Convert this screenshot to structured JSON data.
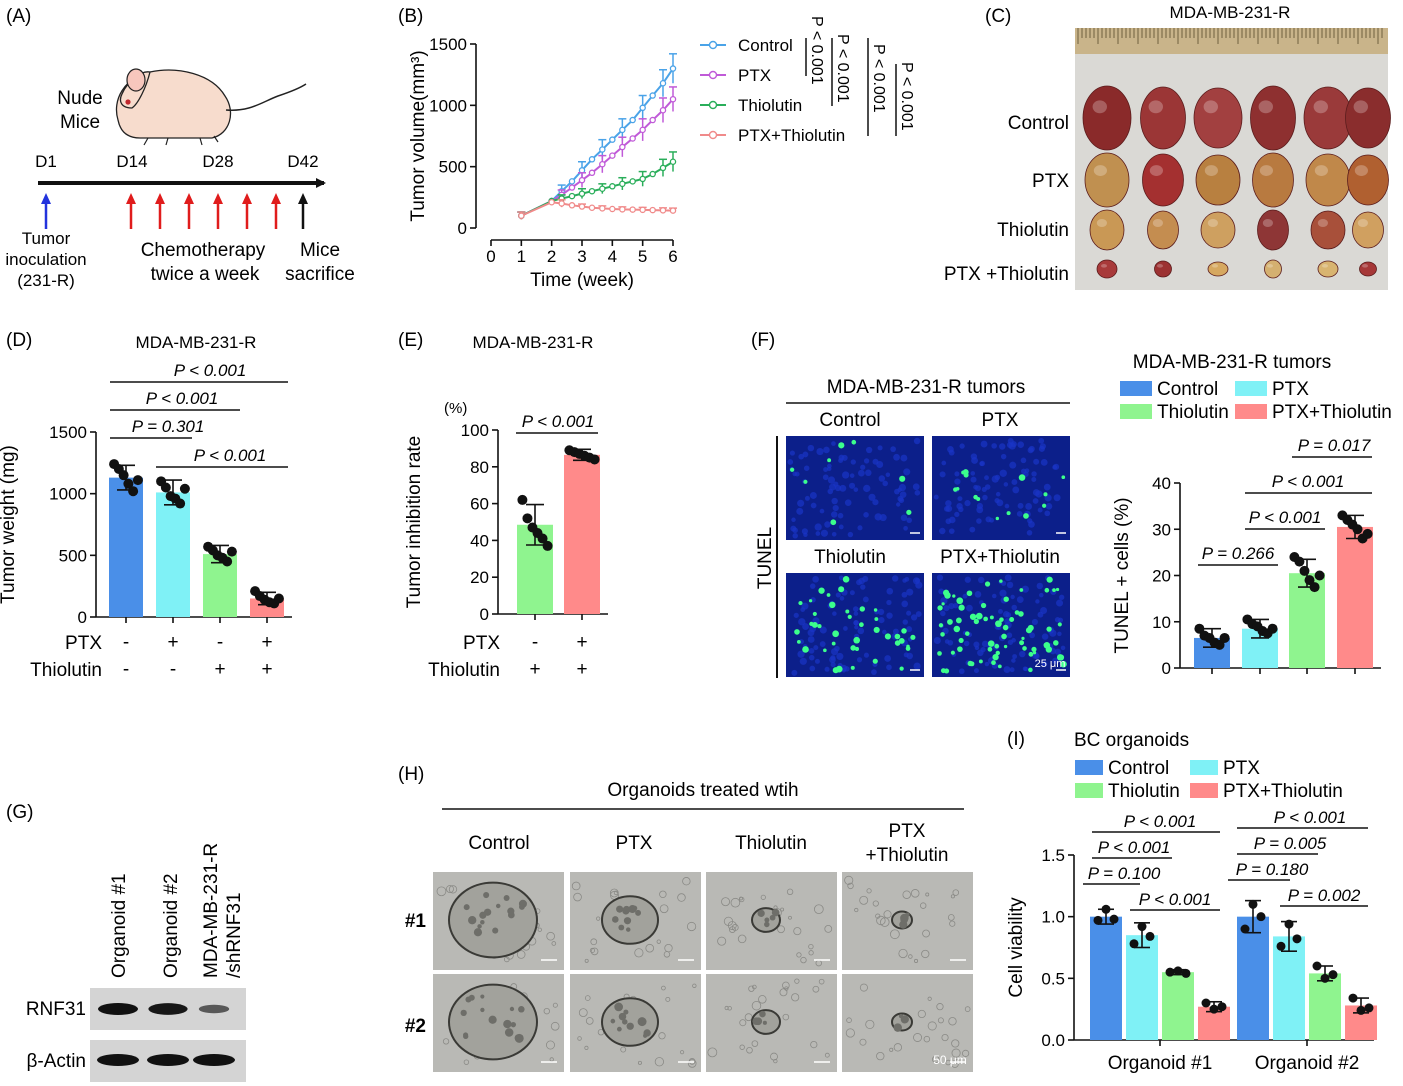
{
  "panels": {
    "A": {
      "letter": "(A)",
      "mouse_label_1": "Nude",
      "mouse_label_2": "Mice",
      "days": [
        "D1",
        "D14",
        "D28",
        "D42"
      ],
      "tumor_1": "Tumor",
      "tumor_2": "inoculation",
      "tumor_3": "(231-R)",
      "chemo_1": "Chemotherapy",
      "chemo_2": "twice a week",
      "sac_1": "Mice",
      "sac_2": "sacrifice",
      "colors": {
        "inoculation": "#2233dd",
        "chemo": "#e01c1c",
        "sacrifice": "#111111"
      }
    },
    "B": {
      "letter": "(B)",
      "pvals": [
        "P < 0.001",
        "P < 0.001",
        "P < 0.001",
        "P < 0.001"
      ]
    },
    "C": {
      "letter": "(C)",
      "title": "MDA-MB-231-R",
      "rows": [
        "Control",
        "PTX",
        "Thiolutin",
        "PTX +Thiolutin"
      ]
    },
    "D": {
      "letter": "(D)",
      "title": "MDA-MB-231-R",
      "pvals": [
        "P < 0.001",
        "P < 0.001",
        "P = 0.301",
        "P < 0.001"
      ],
      "row_labels": [
        "PTX",
        "Thiolutin"
      ],
      "ptx_signs": [
        "-",
        "+",
        "-",
        "+"
      ],
      "thio_signs": [
        "-",
        "-",
        "+",
        "+"
      ]
    },
    "E": {
      "letter": "(E)",
      "title": "MDA-MB-231-R",
      "unit": "(%)",
      "pval": "P < 0.001",
      "row_labels": [
        "PTX",
        "Thiolutin"
      ],
      "ptx_signs": [
        "-",
        "+"
      ],
      "thio_signs": [
        "+",
        "+"
      ]
    },
    "F": {
      "letter": "(F)",
      "header": "MDA-MB-231-R tumors",
      "panel_labels": [
        "Control",
        "PTX",
        "Thiolutin",
        "PTX+Thiolutin"
      ],
      "side_label": "TUNEL",
      "scale": "25 μm",
      "legend_title": "MDA-MB-231-R tumors",
      "legend": [
        "Control",
        "PTX",
        "Thiolutin",
        "PTX+Thiolutin"
      ],
      "pvals": [
        "P = 0.017",
        "P < 0.001",
        "P < 0.001",
        "P = 0.266"
      ]
    },
    "G": {
      "letter": "(G)",
      "lanes": [
        "Organoid #1",
        "Organoid #2",
        "MDA-MB-231-R",
        "/shRNF31"
      ],
      "bands": [
        "RNF31",
        "β-Actin"
      ],
      "rnf31_intensity": [
        1.0,
        0.95,
        0.4
      ],
      "actin_intensity": [
        1.0,
        1.0,
        1.0
      ]
    },
    "H": {
      "letter": "(H)",
      "header": "Organoids treated wtih",
      "cols": [
        "Control",
        "PTX",
        "Thiolutin",
        "PTX",
        "+Thiolutin"
      ],
      "rows": [
        "#1",
        "#2"
      ],
      "scale": "50 μm"
    },
    "I": {
      "letter": "(I)",
      "legend_title": "BC organoids",
      "legend": [
        "Control",
        "PTX",
        "Thiolutin",
        "PTX+Thiolutin"
      ],
      "pvals_g1": [
        "P < 0.001",
        "P < 0.001",
        "P = 0.100",
        "P < 0.001"
      ],
      "pvals_g2": [
        "P < 0.001",
        "P = 0.005",
        "P = 0.180",
        "P = 0.002"
      ]
    }
  },
  "colors": {
    "control": "#4a8fe8",
    "ptx": "#7ff1f6",
    "thiolutin": "#8ff48f",
    "combo": "#ff8a8a",
    "lineControl": "#4aa3e8",
    "linePTX": "#c05ad8",
    "lineThio": "#2aae5a",
    "lineCombo": "#f08a8a"
  },
  "chart_data": [
    {
      "panel": "B",
      "type": "line",
      "xlabel": "Time (week)",
      "ylabel": "Tumor volume(mm³)",
      "xlim": [
        0,
        6
      ],
      "ylim": [
        0,
        1500
      ],
      "x_ticks": [
        0,
        1,
        2,
        3,
        4,
        5,
        6
      ],
      "y_ticks": [
        0,
        500,
        1000,
        1500
      ],
      "x": [
        1,
        2,
        2.33,
        2.67,
        3,
        3.33,
        3.67,
        4,
        4.33,
        4.67,
        5,
        5.33,
        5.67,
        6
      ],
      "series": [
        {
          "name": "Control",
          "values": [
            100,
            220,
            300,
            380,
            470,
            560,
            640,
            720,
            800,
            880,
            980,
            1080,
            1180,
            1300
          ],
          "err": [
            30,
            40,
            50,
            60,
            70,
            80,
            80,
            90,
            90,
            100,
            100,
            110,
            110,
            120
          ]
        },
        {
          "name": "PTX",
          "values": [
            100,
            220,
            270,
            330,
            390,
            450,
            520,
            590,
            660,
            730,
            800,
            880,
            960,
            1050
          ],
          "err": [
            30,
            30,
            40,
            50,
            60,
            60,
            70,
            70,
            80,
            80,
            90,
            90,
            100,
            100
          ]
        },
        {
          "name": "Thiolutin",
          "values": [
            100,
            220,
            240,
            260,
            280,
            300,
            320,
            340,
            360,
            380,
            400,
            440,
            490,
            540
          ],
          "err": [
            30,
            30,
            30,
            30,
            40,
            40,
            40,
            40,
            50,
            50,
            60,
            60,
            70,
            80
          ]
        },
        {
          "name": "PTX+Thiolutin",
          "values": [
            100,
            210,
            200,
            185,
            175,
            165,
            160,
            155,
            152,
            150,
            148,
            146,
            144,
            142
          ],
          "err": [
            30,
            30,
            30,
            25,
            20,
            20,
            20,
            20,
            20,
            20,
            20,
            20,
            20,
            20
          ]
        }
      ]
    },
    {
      "panel": "D",
      "type": "bar",
      "ylabel": "Tumor weight (mg)",
      "ylim": [
        0,
        1500
      ],
      "y_ticks": [
        0,
        500,
        1000,
        1500
      ],
      "values": [
        1130,
        1010,
        510,
        150
      ],
      "err": [
        100,
        100,
        70,
        50
      ],
      "points": [
        [
          1240,
          1200,
          1150,
          1080,
          1020,
          1110
        ],
        [
          1100,
          1050,
          980,
          960,
          920,
          1040
        ],
        [
          570,
          540,
          500,
          480,
          450,
          530
        ],
        [
          210,
          170,
          140,
          120,
          110,
          150
        ]
      ]
    },
    {
      "panel": "E",
      "type": "bar",
      "ylabel": "Tumor inhibition rate",
      "ylim": [
        0,
        100
      ],
      "y_ticks": [
        0,
        20,
        40,
        60,
        80,
        100
      ],
      "values": [
        48.5,
        86.5
      ],
      "err": [
        11,
        3
      ],
      "points": [
        [
          62,
          52,
          47,
          44,
          41,
          37
        ],
        [
          89,
          88,
          87,
          86,
          85,
          84
        ]
      ]
    },
    {
      "panel": "F",
      "type": "bar",
      "ylabel": "TUNEL + cells (%)",
      "ylim": [
        0,
        40
      ],
      "y_ticks": [
        0,
        10,
        20,
        30,
        40
      ],
      "values": [
        6.5,
        8.5,
        20.5,
        30.5
      ],
      "err": [
        2,
        2,
        3,
        2.5
      ],
      "points": [
        [
          8.5,
          7,
          6.5,
          5.5,
          5,
          6.5
        ],
        [
          10.5,
          9.5,
          9,
          8,
          7.5,
          8.5
        ],
        [
          24,
          23,
          21,
          19,
          17.5,
          20
        ],
        [
          33,
          32,
          31,
          30,
          28,
          29
        ]
      ]
    },
    {
      "panel": "I",
      "type": "bar",
      "ylabel": "Cell viability",
      "ylim": [
        0,
        1.5
      ],
      "y_ticks": [
        0.0,
        0.5,
        1.0,
        1.5
      ],
      "categories": [
        "Organoid #1",
        "Organoid #2"
      ],
      "series": [
        {
          "name": "Control",
          "values": [
            1.0,
            1.0
          ],
          "err": [
            0.06,
            0.13
          ],
          "points": [
            [
              0.97,
              1.06,
              0.98
            ],
            [
              0.9,
              1.1,
              1.0
            ]
          ]
        },
        {
          "name": "PTX",
          "values": [
            0.85,
            0.84
          ],
          "err": [
            0.1,
            0.12
          ],
          "points": [
            [
              0.78,
              0.92,
              0.84
            ],
            [
              0.76,
              0.94,
              0.82
            ]
          ]
        },
        {
          "name": "Thiolutin",
          "values": [
            0.55,
            0.54
          ],
          "err": [
            0.02,
            0.06
          ],
          "points": [
            [
              0.55,
              0.56,
              0.54
            ],
            [
              0.6,
              0.5,
              0.53
            ]
          ]
        },
        {
          "name": "PTX+Thiolutin",
          "values": [
            0.27,
            0.28
          ],
          "err": [
            0.04,
            0.06
          ],
          "points": [
            [
              0.3,
              0.25,
              0.27
            ],
            [
              0.34,
              0.24,
              0.26
            ]
          ]
        }
      ]
    }
  ]
}
